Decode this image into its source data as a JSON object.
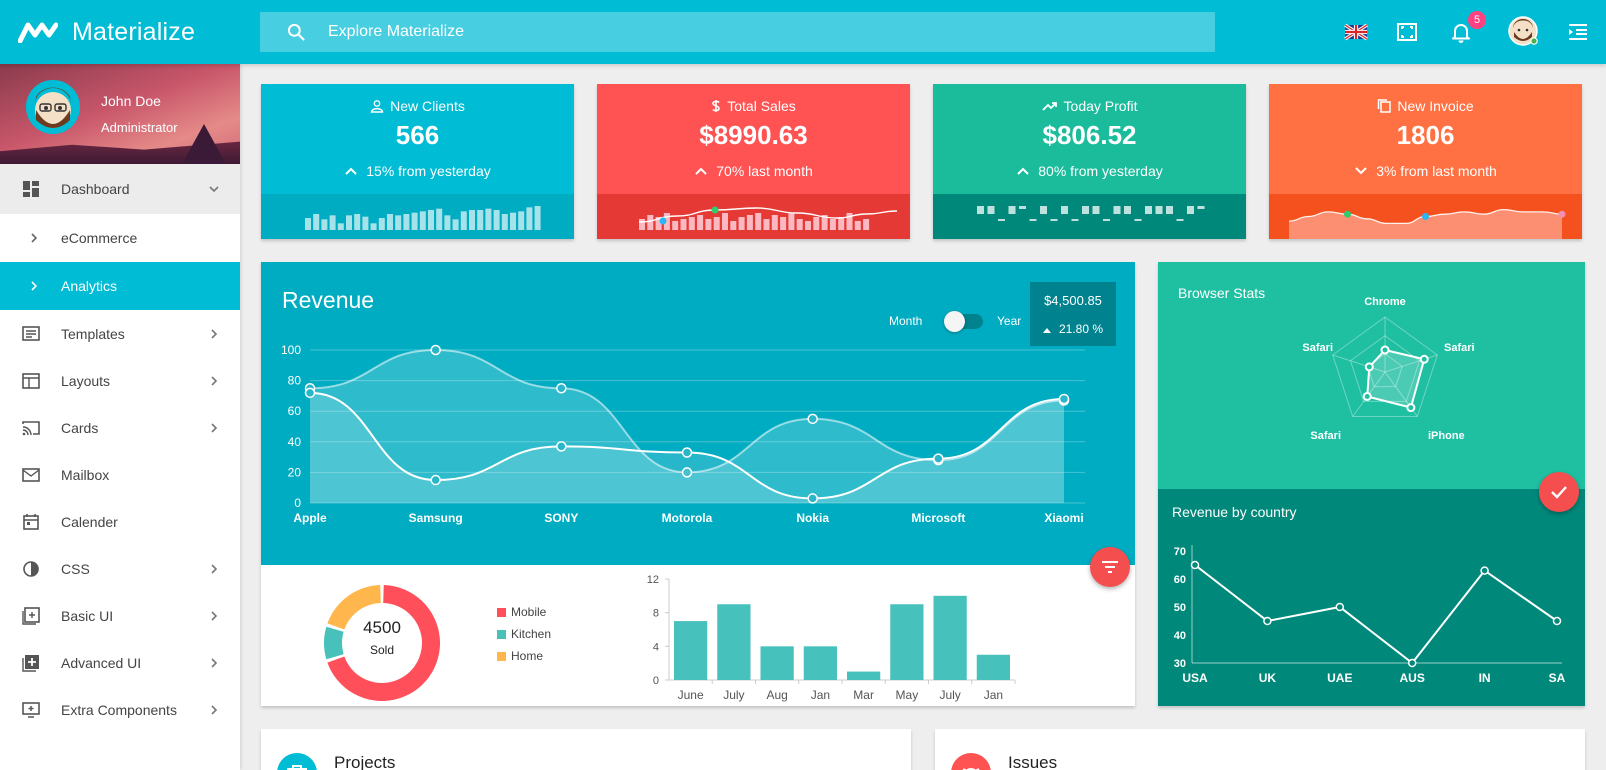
{
  "app": {
    "name": "Materialize"
  },
  "search": {
    "placeholder": "Explore Materialize"
  },
  "topbar": {
    "notification_count": "5",
    "icons": [
      "flag-uk-icon",
      "fullscreen-icon",
      "bell-icon",
      "user-avatar",
      "sidenav-icon"
    ]
  },
  "user": {
    "name": "John Doe",
    "role": "Administrator"
  },
  "sidebar": {
    "items": [
      {
        "label": "Dashboard",
        "icon": "dashboard-icon",
        "state": "open"
      },
      {
        "label": "eCommerce",
        "icon": "chevron-right-icon",
        "state": "sub"
      },
      {
        "label": "Analytics",
        "icon": "chevron-right-icon",
        "state": "active"
      },
      {
        "label": "Templates",
        "icon": "templates-icon"
      },
      {
        "label": "Layouts",
        "icon": "layouts-icon"
      },
      {
        "label": "Cards",
        "icon": "cast-icon"
      },
      {
        "label": "Mailbox",
        "icon": "mail-icon"
      },
      {
        "label": "Calender",
        "icon": "calendar-icon"
      },
      {
        "label": "CSS",
        "icon": "contrast-icon"
      },
      {
        "label": "Basic UI",
        "icon": "add-to-photos-icon"
      },
      {
        "label": "Advanced UI",
        "icon": "library-add-icon"
      },
      {
        "label": "Extra Components",
        "icon": "add-to-queue-icon"
      }
    ]
  },
  "stats": [
    {
      "title": "New Clients",
      "value": "566",
      "change": "15% from yesterday",
      "direction": "up",
      "color": "#00bcd4",
      "bottom_color": "#00acc1",
      "spark": [
        6,
        9,
        5,
        8,
        2,
        8,
        9,
        7,
        2,
        6,
        9,
        8,
        9,
        10,
        11,
        12,
        13,
        8,
        5,
        11,
        12,
        12,
        13,
        12,
        9,
        10,
        11,
        14,
        15
      ]
    },
    {
      "title": "Total Sales",
      "value": "$8990.63",
      "change": "70% last month",
      "direction": "up",
      "color": "#ff5252",
      "bottom_color": "#e53935",
      "spark": [
        4,
        6,
        5,
        7,
        3,
        4,
        5,
        6,
        4,
        5,
        7,
        3,
        5,
        6,
        7,
        4,
        6,
        5,
        7,
        4,
        3,
        5,
        6,
        4,
        5,
        7,
        3,
        4
      ]
    },
    {
      "title": "Today Profit",
      "value": "$806.52",
      "change": "80% from yesterday",
      "direction": "up",
      "color": "#1abc9c",
      "bottom_color": "#00897b",
      "spark": [
        8,
        8,
        -2,
        8,
        3,
        -4,
        8,
        -7,
        8,
        -3,
        8,
        8,
        -6,
        8,
        8,
        -2,
        8,
        8,
        8,
        -5,
        8,
        3
      ]
    },
    {
      "title": "New Invoice",
      "value": "1806",
      "change": "3% from last month",
      "direction": "down",
      "color": "#ff7043",
      "bottom_color": "#f4511e",
      "spark": [
        3,
        5,
        7,
        6,
        4,
        2,
        2,
        5,
        6,
        7,
        6,
        8,
        7,
        7,
        6
      ]
    }
  ],
  "revenue": {
    "title": "Revenue",
    "toggle_left": "Month",
    "toggle_right": "Year",
    "total": "$4,500.85",
    "percent": "21.80 %",
    "chart_data": {
      "type": "line",
      "categories": [
        "Apple",
        "Samsung",
        "SONY",
        "Motorola",
        "Nokia",
        "Microsoft",
        "Xiaomi"
      ],
      "ylim": [
        0,
        100
      ],
      "yticks": [
        0,
        20,
        40,
        60,
        80,
        100
      ],
      "series": [
        {
          "values": [
            75,
            100,
            75,
            20,
            55,
            28,
            67
          ]
        },
        {
          "values": [
            72,
            15,
            37,
            33,
            3,
            29,
            68
          ]
        }
      ]
    }
  },
  "sold": {
    "total": "4500",
    "label": "Sold",
    "chart_data": {
      "type": "pie",
      "categories": [
        "Mobile",
        "Kitchen",
        "Home"
      ],
      "values": [
        70,
        10,
        20
      ],
      "colors": [
        "#ff4f5a",
        "#49c1bb",
        "#ffb74d"
      ]
    }
  },
  "monthly": {
    "chart_data": {
      "type": "bar",
      "categories": [
        "June",
        "July",
        "Aug",
        "Jan",
        "Mar",
        "May",
        "July",
        "Jan"
      ],
      "values": [
        7,
        9,
        4,
        4,
        1,
        9,
        10,
        3
      ],
      "ylim": [
        0,
        12
      ],
      "yticks": [
        0,
        4,
        8,
        12
      ]
    }
  },
  "browser": {
    "title": "Browser Stats",
    "chart_data": {
      "type": "radar",
      "categories": [
        "Chrome",
        "Safari",
        "iPhone",
        "Safari",
        "Safari"
      ],
      "values": [
        40,
        75,
        80,
        55,
        30
      ]
    }
  },
  "country": {
    "title": "Revenue by country",
    "chart_data": {
      "type": "line",
      "categories": [
        "USA",
        "UK",
        "UAE",
        "AUS",
        "IN",
        "SA"
      ],
      "values": [
        65,
        45,
        50,
        30,
        63,
        45
      ],
      "ylim": [
        30,
        70
      ],
      "yticks": [
        30,
        40,
        50,
        60,
        70
      ]
    }
  },
  "bottom_cards": [
    {
      "title": "Projects",
      "color": "#00bcd4",
      "icon": "work-icon"
    },
    {
      "title": "Issues",
      "color": "#ff5252",
      "icon": "bug-icon"
    }
  ]
}
